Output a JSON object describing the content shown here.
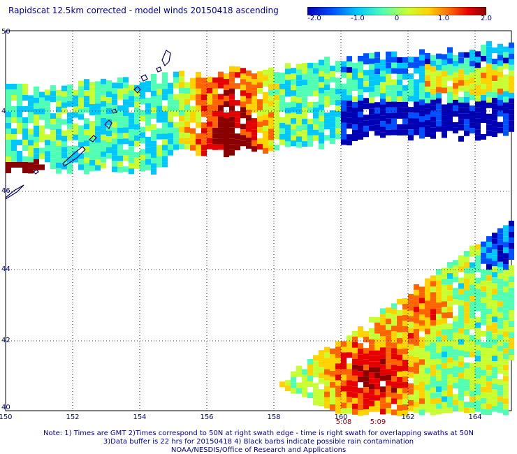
{
  "title": "Rapidscat 12.5km corrected - model winds 20150418 ascending",
  "colorbar": {
    "ticks": [
      "-2.0",
      "-1.0",
      "0",
      "1.0",
      "2.0"
    ],
    "colors": [
      "#0000b4",
      "#0050ff",
      "#00c8ff",
      "#50ffb4",
      "#c8ff32",
      "#ffd200",
      "#ff6400",
      "#e60000",
      "#8b0000"
    ]
  },
  "axes": {
    "y_labels": [
      "50",
      "4",
      "46",
      "44",
      "42",
      "40"
    ],
    "x_labels": [
      "150",
      "152",
      "154",
      "156",
      "158",
      "160",
      "162",
      "164"
    ]
  },
  "swath_times": [
    "5:08",
    "5:09"
  ],
  "notes": [
    "Note: 1) Times are GMT 2)Times correspond to 50N at right swath edge - time is right swath for overlapping swaths at 50N",
    "3)Data buffer is 22 hrs for 20150418 4) Black barbs indicate possible rain contamination",
    "NOAA/NESDIS/Office of Research and Applications"
  ]
}
